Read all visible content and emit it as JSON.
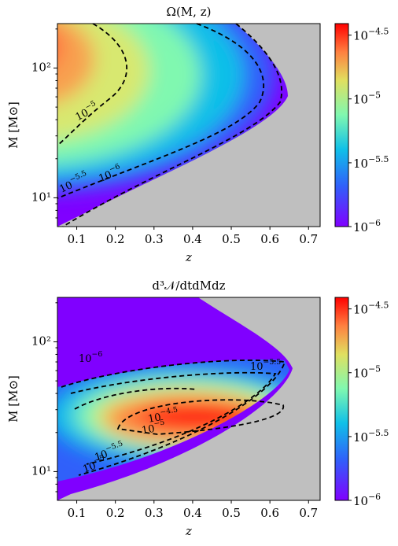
{
  "chart_data": [
    {
      "type": "heatmap",
      "title": "Ω(M, z)",
      "xlabel": "z",
      "ylabel": "M [M⊙]",
      "xlim": [
        0.05,
        0.73
      ],
      "xticks": [
        0.1,
        0.2,
        0.3,
        0.4,
        0.5,
        0.6,
        0.7
      ],
      "ylim": [
        6,
        220
      ],
      "ylog": true,
      "yticks": [
        {
          "value": 10,
          "label": "10¹"
        },
        {
          "value": 100,
          "label": "10²"
        }
      ],
      "colorbar": {
        "log": true,
        "lim": [
          1e-06,
          3.89e-05
        ],
        "ticks": [
          {
            "value": 1e-06,
            "label": "10−6"
          },
          {
            "value": 3.16e-06,
            "label": "10−5.5"
          },
          {
            "value": 1e-05,
            "label": "10−5"
          },
          {
            "value": 3.16e-05,
            "label": "10−4.5"
          }
        ]
      },
      "annotations": [
        "10−5",
        "10−5.5",
        "10−6"
      ]
    },
    {
      "type": "heatmap",
      "title": "d³𝒩/dtdMdz",
      "xlabel": "z",
      "ylabel": "M [M⊙]",
      "xlim": [
        0.05,
        0.73
      ],
      "xticks": [
        0.1,
        0.2,
        0.3,
        0.4,
        0.5,
        0.6,
        0.7
      ],
      "ylim": [
        6,
        220
      ],
      "ylog": true,
      "yticks": [
        {
          "value": 10,
          "label": "10¹"
        },
        {
          "value": 100,
          "label": "10²"
        }
      ],
      "colorbar": {
        "log": true,
        "lim": [
          1e-06,
          3.89e-05
        ],
        "ticks": [
          {
            "value": 1e-06,
            "label": "10−6"
          },
          {
            "value": 3.16e-06,
            "label": "10−5.5"
          },
          {
            "value": 1e-05,
            "label": "10−5"
          },
          {
            "value": 3.16e-05,
            "label": "10−4.5"
          }
        ]
      },
      "annotations": [
        "10−6",
        "10−5.5",
        "10−4.5",
        "10−5",
        "10−5.5",
        "10−5"
      ]
    }
  ]
}
